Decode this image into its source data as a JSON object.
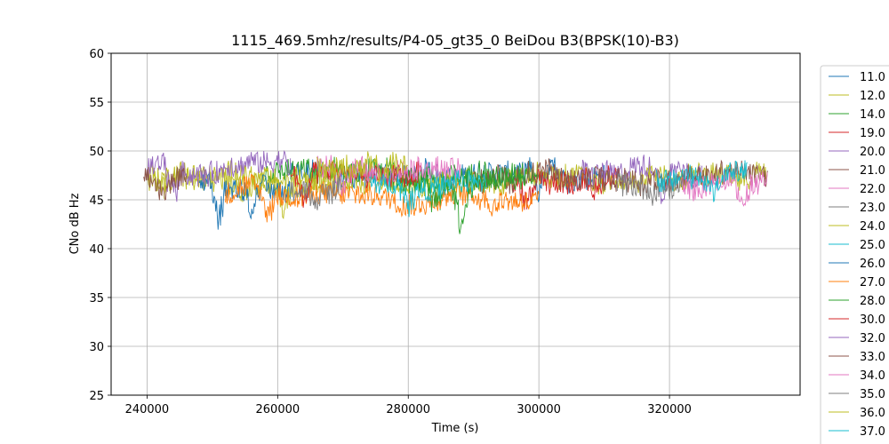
{
  "chart_data": {
    "type": "line",
    "title": "1115_469.5mhz/results/P4-05_gt35_0 BeiDou B3(BPSK(10)-B3)",
    "xlabel": "Time (s)",
    "ylabel": "CNo dB Hz",
    "xlim": [
      234500,
      340000
    ],
    "ylim": [
      25,
      60
    ],
    "xticks": [
      240000,
      260000,
      280000,
      300000,
      320000
    ],
    "yticks": [
      25,
      30,
      35,
      40,
      45,
      50,
      55,
      60
    ],
    "grid": true,
    "legend_position": "right-outside",
    "series": [
      {
        "name": "11.0",
        "color": "#1f77b4",
        "x_range": [
          262000,
          310000
        ],
        "mean": 47.5,
        "dips": [
          [
            300000,
            44.5
          ],
          [
            305000,
            45.0
          ]
        ]
      },
      {
        "name": "12.0",
        "color": "#bcbd22",
        "x_range": [
          240000,
          335000
        ],
        "mean": 47.0,
        "dips": [
          [
            255000,
            45.0
          ],
          [
            315000,
            45.5
          ]
        ]
      },
      {
        "name": "14.0",
        "color": "#2ca02c",
        "x_range": [
          258000,
          300000
        ],
        "mean": 47.5,
        "dips": [
          [
            285000,
            44.0
          ]
        ]
      },
      {
        "name": "19.0",
        "color": "#d62728",
        "x_range": [
          296000,
          312000
        ],
        "mean": 46.5,
        "dips": [
          [
            298000,
            44.0
          ],
          [
            309000,
            44.5
          ]
        ]
      },
      {
        "name": "20.0",
        "color": "#9467bd",
        "x_range": [
          306000,
          325000
        ],
        "mean": 48.0,
        "dips": [
          [
            319000,
            44.5
          ]
        ]
      },
      {
        "name": "21.0",
        "color": "#8c564b",
        "x_range": [
          290000,
          335000
        ],
        "mean": 47.5,
        "dips": [
          [
            296000,
            45.5
          ]
        ]
      },
      {
        "name": "22.0",
        "color": "#e377c2",
        "x_range": [
          322000,
          335000
        ],
        "mean": 46.5,
        "dips": [
          [
            331000,
            43.5
          ]
        ]
      },
      {
        "name": "23.0",
        "color": "#7f7f7f",
        "x_range": [
          312000,
          322000
        ],
        "mean": 46.5,
        "dips": [
          [
            317000,
            45.0
          ]
        ]
      },
      {
        "name": "24.0",
        "color": "#bcbd22",
        "x_range": [
          240000,
          268000
        ],
        "mean": 47.5,
        "dips": [
          [
            261000,
            43.0
          ]
        ]
      },
      {
        "name": "25.0",
        "color": "#17becf",
        "x_range": [
          318000,
          332000
        ],
        "mean": 47.5,
        "dips": [
          [
            327000,
            45.5
          ]
        ]
      },
      {
        "name": "26.0",
        "color": "#1f77b4",
        "x_range": [
          248000,
          262000
        ],
        "mean": 46.5,
        "dips": [
          [
            251000,
            42.0
          ],
          [
            256000,
            44.5
          ]
        ]
      },
      {
        "name": "27.0",
        "color": "#ff7f0e",
        "x_range": [
          252000,
          300000
        ],
        "mean": 45.5,
        "dips": [
          [
            258500,
            41.5
          ],
          [
            293000,
            44.5
          ]
        ]
      },
      {
        "name": "28.0",
        "color": "#2ca02c",
        "x_range": [
          276000,
          298000
        ],
        "mean": 47.0,
        "dips": [
          [
            288000,
            42.0
          ],
          [
            284000,
            44.0
          ]
        ]
      },
      {
        "name": "30.0",
        "color": "#d62728",
        "x_range": [
          262000,
          282000
        ],
        "mean": 47.5,
        "dips": [
          [
            264000,
            44.5
          ]
        ]
      },
      {
        "name": "32.0",
        "color": "#9467bd",
        "x_range": [
          240000,
          262000
        ],
        "mean": 48.0,
        "dips": [
          [
            244000,
            44.0
          ]
        ]
      },
      {
        "name": "33.0",
        "color": "#8c564b",
        "x_range": [
          239500,
          246000
        ],
        "mean": 47.0,
        "dips": [
          [
            242500,
            44.5
          ]
        ]
      },
      {
        "name": "34.0",
        "color": "#e377c2",
        "x_range": [
          266000,
          288000
        ],
        "mean": 48.0,
        "dips": [
          [
            270000,
            45.5
          ]
        ]
      },
      {
        "name": "35.0",
        "color": "#7f7f7f",
        "x_range": [
          262000,
          270000
        ],
        "mean": 46.0,
        "dips": [
          [
            266000,
            44.5
          ]
        ]
      },
      {
        "name": "36.0",
        "color": "#bcbd22",
        "x_range": [
          266000,
          280000
        ],
        "mean": 48.5,
        "dips": [
          [
            276000,
            46.5
          ]
        ]
      },
      {
        "name": "37.0",
        "color": "#17becf",
        "x_range": [
          274000,
          292000
        ],
        "mean": 46.5,
        "dips": [
          [
            280000,
            44.0
          ]
        ]
      }
    ]
  }
}
